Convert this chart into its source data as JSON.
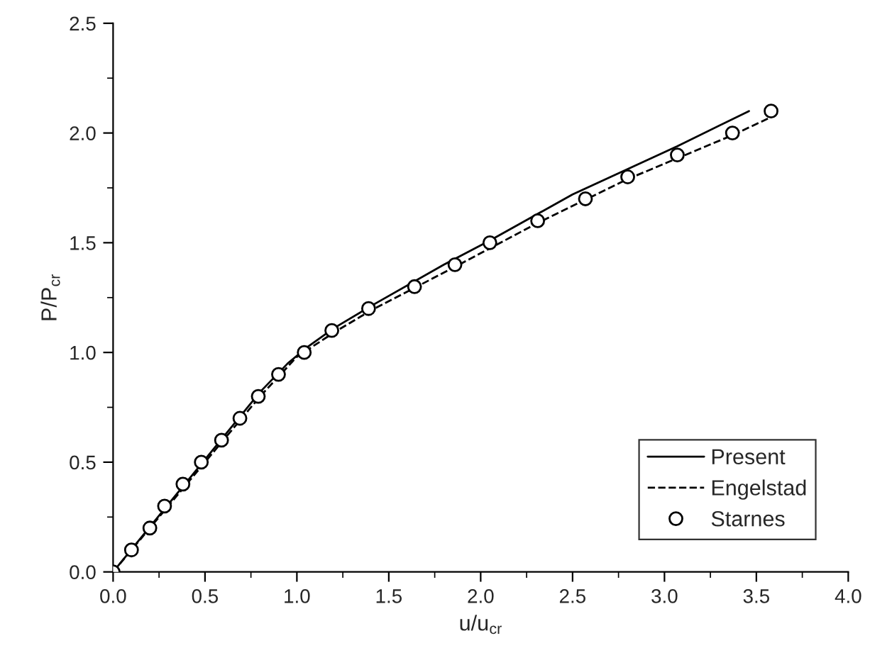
{
  "chart_data": {
    "type": "line",
    "xlabel": "u/u$_{cr}$",
    "ylabel": "P/P$_{cr}$",
    "xlim": [
      0,
      4
    ],
    "ylim": [
      0,
      2.5
    ],
    "xticks": [
      {
        "value": 0,
        "label": "0.0"
      },
      {
        "value": 0.5,
        "label": "0.5"
      },
      {
        "value": 1,
        "label": "1.0"
      },
      {
        "value": 1.5,
        "label": "1.5"
      },
      {
        "value": 2,
        "label": "2.0"
      },
      {
        "value": 2.5,
        "label": "2.5"
      },
      {
        "value": 3,
        "label": "3.0"
      },
      {
        "value": 3.5,
        "label": "3.5"
      },
      {
        "value": 4,
        "label": "4.0"
      }
    ],
    "yticks": [
      {
        "value": 0,
        "label": "0.0"
      },
      {
        "value": 0.5,
        "label": "0.5"
      },
      {
        "value": 1,
        "label": "1.0"
      },
      {
        "value": 1.5,
        "label": "1.5"
      },
      {
        "value": 2,
        "label": "2.0"
      },
      {
        "value": 2.5,
        "label": "2.5"
      }
    ],
    "grid": false,
    "legend": "bottom right",
    "series": [
      {
        "name": "Present",
        "color": "#000000",
        "line_style": "solid",
        "marker": "none",
        "x": [
          0,
          0.4,
          0.8,
          0.95,
          1.05,
          1.2,
          1.4,
          1.8,
          2.05,
          2.5,
          3.07,
          3.46
        ],
        "values": [
          0,
          0.41,
          0.82,
          0.95,
          1.02,
          1.11,
          1.21,
          1.4,
          1.51,
          1.72,
          1.94,
          2.1
        ]
      },
      {
        "name": "Engelstad",
        "color": "#000000",
        "line_style": "dashed",
        "marker": "none",
        "x": [
          0,
          0.5,
          0.8,
          1.0,
          1.2,
          1.4,
          1.86,
          2.31,
          2.8,
          3.37,
          3.6
        ],
        "values": [
          0,
          0.5,
          0.8,
          0.98,
          1.09,
          1.19,
          1.39,
          1.59,
          1.79,
          1.99,
          2.08
        ]
      },
      {
        "name": "Starnes",
        "type": "scatter",
        "color": "#000000",
        "marker": "circle",
        "x": [
          0,
          0.1,
          0.2,
          0.28,
          0.38,
          0.48,
          0.59,
          0.69,
          0.79,
          0.9,
          1.04,
          1.19,
          1.39,
          1.64,
          1.86,
          2.05,
          2.31,
          2.57,
          2.8,
          3.07,
          3.37,
          3.58
        ],
        "values": [
          0,
          0.1,
          0.2,
          0.3,
          0.4,
          0.5,
          0.6,
          0.7,
          0.8,
          0.9,
          1.0,
          1.1,
          1.2,
          1.3,
          1.4,
          1.5,
          1.6,
          1.7,
          1.8,
          1.9,
          2.0,
          2.1
        ]
      }
    ]
  }
}
